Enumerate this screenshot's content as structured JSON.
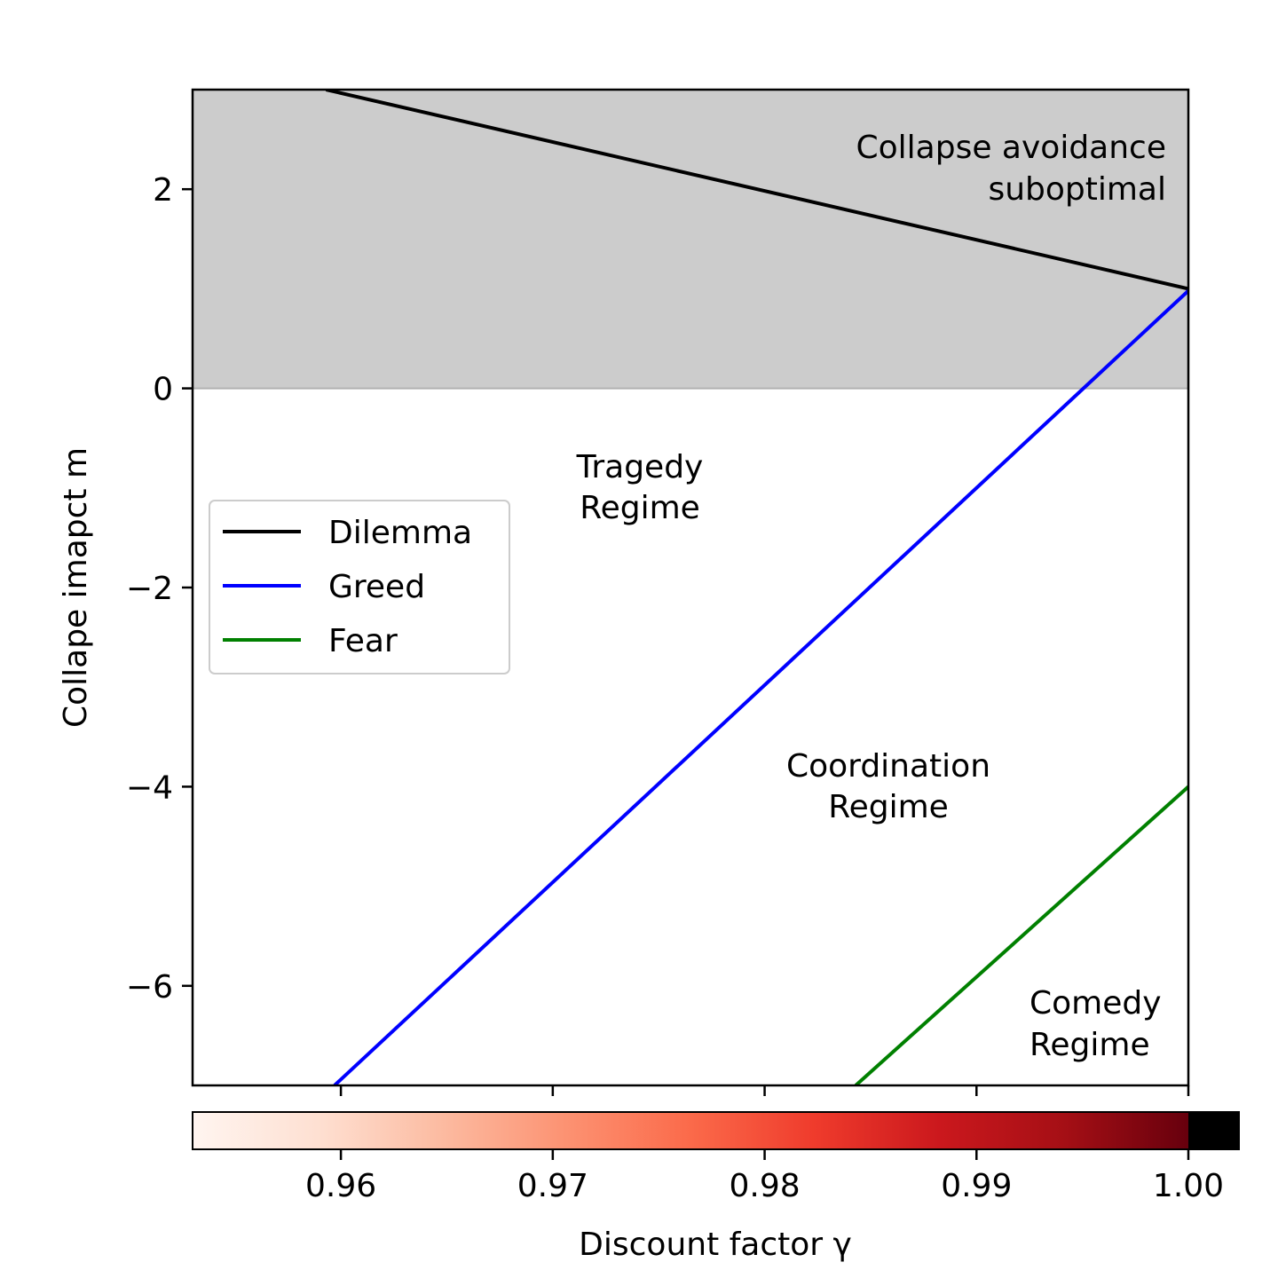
{
  "chart_data": {
    "type": "line",
    "xlabel": "Discount factor γ",
    "ylabel": "Collape imapct m",
    "xlim": [
      0.953,
      1.0
    ],
    "ylim": [
      -7,
      3
    ],
    "x_ticks": [
      "0.96",
      "0.97",
      "0.98",
      "0.99",
      "1.00"
    ],
    "y_ticks": [
      "2",
      "0",
      "−2",
      "−4",
      "−6"
    ],
    "y_tick_values": [
      2,
      0,
      -2,
      -4,
      -6
    ],
    "x_tick_values": [
      0.96,
      0.97,
      0.98,
      0.99,
      1.0
    ],
    "grid": false,
    "legend_position": "center-left",
    "shaded_region": {
      "y_from": 0,
      "y_to": 3,
      "color": "#cccccc"
    },
    "series": [
      {
        "name": "Dilemma",
        "color": "#000000",
        "x": [
          0.9593,
          1.0
        ],
        "y": [
          3.0,
          1.0
        ]
      },
      {
        "name": "Greed",
        "color": "#0000ff",
        "x": [
          0.9597,
          1.0
        ],
        "y": [
          -7.0,
          0.98
        ]
      },
      {
        "name": "Fear",
        "color": "#008000",
        "x": [
          0.9843,
          1.0
        ],
        "y": [
          -7.0,
          -4.0
        ]
      }
    ],
    "annotations": [
      {
        "lines": [
          "Collapse avoidance",
          "suboptimal"
        ]
      },
      {
        "lines": [
          "Tragedy",
          "Regime"
        ]
      },
      {
        "lines": [
          "Coordination",
          "Regime"
        ]
      },
      {
        "lines": [
          "Comedy",
          "Regime"
        ]
      }
    ],
    "colorbar": {
      "colormap": "Reds",
      "range": [
        0.953,
        1.0
      ],
      "extend_max_color": "#000000",
      "label": "Discount factor γ"
    }
  }
}
